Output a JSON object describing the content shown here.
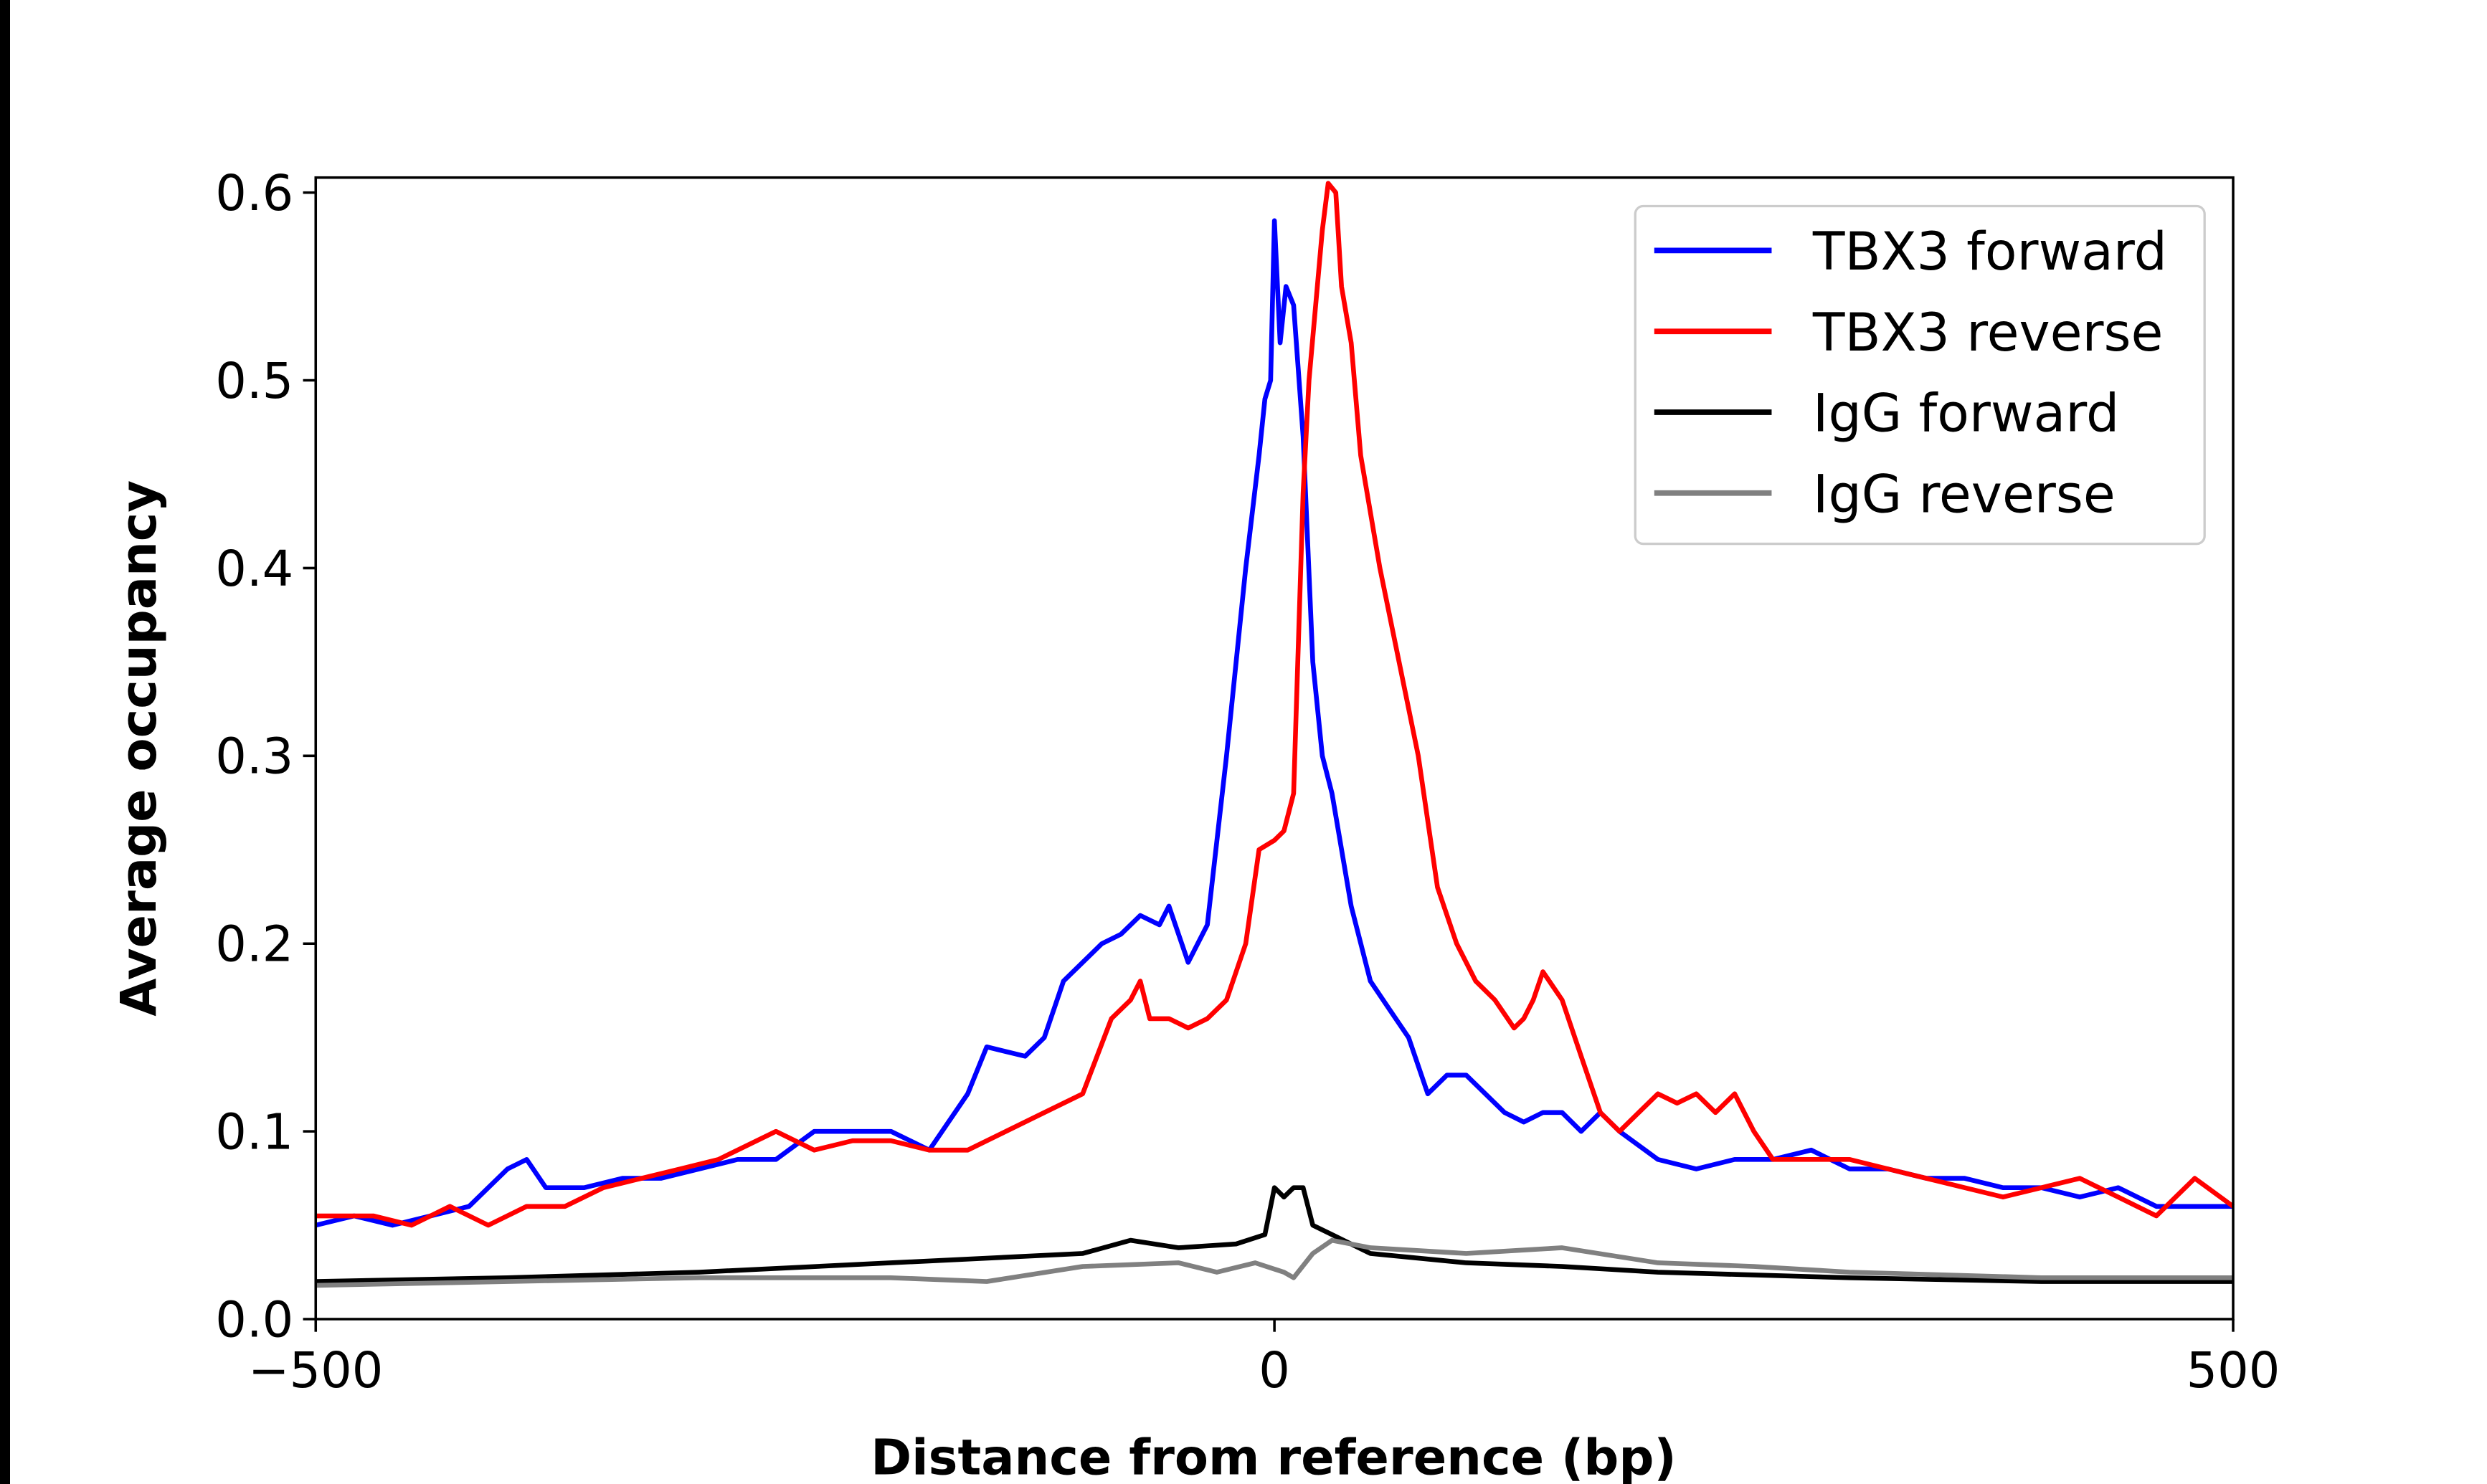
{
  "chart_data": {
    "type": "line",
    "xlabel": "Distance from reference (bp)",
    "ylabel": "Average occupancy",
    "xlim": [
      -500,
      500
    ],
    "ylim": [
      0,
      0.608
    ],
    "xticks": [
      -500,
      0,
      500
    ],
    "xtick_labels": [
      "−500",
      "0",
      "500"
    ],
    "yticks": [
      0.0,
      0.1,
      0.2,
      0.3,
      0.4,
      0.5,
      0.6
    ],
    "ytick_labels": [
      "0.0",
      "0.1",
      "0.2",
      "0.3",
      "0.4",
      "0.5",
      "0.6"
    ],
    "grid": false,
    "legend_position": "top-right",
    "series": [
      {
        "name": "TBX3 forward",
        "color": "#0000ff",
        "x": [
          -500,
          -480,
          -460,
          -440,
          -420,
          -400,
          -390,
          -380,
          -360,
          -340,
          -320,
          -300,
          -280,
          -260,
          -240,
          -220,
          -200,
          -180,
          -160,
          -150,
          -130,
          -120,
          -110,
          -90,
          -80,
          -70,
          -60,
          -55,
          -45,
          -35,
          -25,
          -15,
          -8,
          -5,
          -2,
          0,
          3,
          6,
          10,
          15,
          20,
          25,
          30,
          40,
          50,
          60,
          70,
          80,
          90,
          100,
          110,
          120,
          130,
          140,
          150,
          160,
          170,
          180,
          200,
          220,
          240,
          260,
          280,
          300,
          320,
          340,
          360,
          380,
          400,
          420,
          440,
          460,
          480,
          500
        ],
        "y": [
          0.05,
          0.055,
          0.05,
          0.055,
          0.06,
          0.08,
          0.085,
          0.07,
          0.07,
          0.075,
          0.075,
          0.08,
          0.085,
          0.085,
          0.1,
          0.1,
          0.1,
          0.09,
          0.12,
          0.145,
          0.14,
          0.15,
          0.18,
          0.2,
          0.205,
          0.215,
          0.21,
          0.22,
          0.19,
          0.21,
          0.3,
          0.4,
          0.46,
          0.49,
          0.5,
          0.585,
          0.52,
          0.55,
          0.54,
          0.47,
          0.35,
          0.3,
          0.28,
          0.22,
          0.18,
          0.165,
          0.15,
          0.12,
          0.13,
          0.13,
          0.12,
          0.11,
          0.105,
          0.11,
          0.11,
          0.1,
          0.11,
          0.1,
          0.085,
          0.08,
          0.085,
          0.085,
          0.09,
          0.08,
          0.08,
          0.075,
          0.075,
          0.07,
          0.07,
          0.065,
          0.07,
          0.06,
          0.06,
          0.06
        ]
      },
      {
        "name": "TBX3 reverse",
        "color": "#ff0000",
        "x": [
          -500,
          -470,
          -450,
          -430,
          -410,
          -390,
          -370,
          -350,
          -330,
          -310,
          -290,
          -260,
          -240,
          -220,
          -200,
          -180,
          -160,
          -140,
          -120,
          -100,
          -85,
          -75,
          -70,
          -65,
          -55,
          -45,
          -35,
          -25,
          -15,
          -8,
          0,
          5,
          10,
          15,
          18,
          25,
          28,
          32,
          35,
          40,
          45,
          55,
          65,
          75,
          85,
          95,
          105,
          115,
          125,
          130,
          135,
          140,
          150,
          160,
          170,
          180,
          190,
          200,
          210,
          220,
          230,
          240,
          250,
          260,
          280,
          300,
          320,
          340,
          360,
          380,
          400,
          420,
          440,
          460,
          480,
          500
        ],
        "y": [
          0.055,
          0.055,
          0.05,
          0.06,
          0.05,
          0.06,
          0.06,
          0.07,
          0.075,
          0.08,
          0.085,
          0.1,
          0.09,
          0.095,
          0.095,
          0.09,
          0.09,
          0.1,
          0.11,
          0.12,
          0.16,
          0.17,
          0.18,
          0.16,
          0.16,
          0.155,
          0.16,
          0.17,
          0.2,
          0.25,
          0.255,
          0.26,
          0.28,
          0.44,
          0.5,
          0.58,
          0.605,
          0.6,
          0.55,
          0.52,
          0.46,
          0.4,
          0.35,
          0.3,
          0.23,
          0.2,
          0.18,
          0.17,
          0.155,
          0.16,
          0.17,
          0.185,
          0.17,
          0.14,
          0.11,
          0.1,
          0.11,
          0.12,
          0.115,
          0.12,
          0.11,
          0.12,
          0.1,
          0.085,
          0.085,
          0.085,
          0.08,
          0.075,
          0.07,
          0.065,
          0.07,
          0.075,
          0.065,
          0.055,
          0.075,
          0.06
        ]
      },
      {
        "name": "IgG forward",
        "color": "#000000",
        "x": [
          -500,
          -400,
          -300,
          -200,
          -100,
          -75,
          -50,
          -20,
          -5,
          0,
          5,
          10,
          15,
          20,
          30,
          50,
          100,
          150,
          200,
          300,
          400,
          500
        ],
        "y": [
          0.02,
          0.022,
          0.025,
          0.03,
          0.035,
          0.042,
          0.038,
          0.04,
          0.045,
          0.07,
          0.065,
          0.07,
          0.07,
          0.05,
          0.045,
          0.035,
          0.03,
          0.028,
          0.025,
          0.022,
          0.02,
          0.02
        ]
      },
      {
        "name": "IgG reverse",
        "color": "#808080",
        "x": [
          -500,
          -400,
          -300,
          -200,
          -150,
          -100,
          -50,
          -30,
          -10,
          5,
          10,
          20,
          30,
          50,
          100,
          150,
          200,
          250,
          300,
          400,
          500
        ],
        "y": [
          0.018,
          0.02,
          0.022,
          0.022,
          0.02,
          0.028,
          0.03,
          0.025,
          0.03,
          0.025,
          0.022,
          0.035,
          0.042,
          0.038,
          0.035,
          0.038,
          0.03,
          0.028,
          0.025,
          0.022,
          0.022
        ]
      }
    ]
  }
}
